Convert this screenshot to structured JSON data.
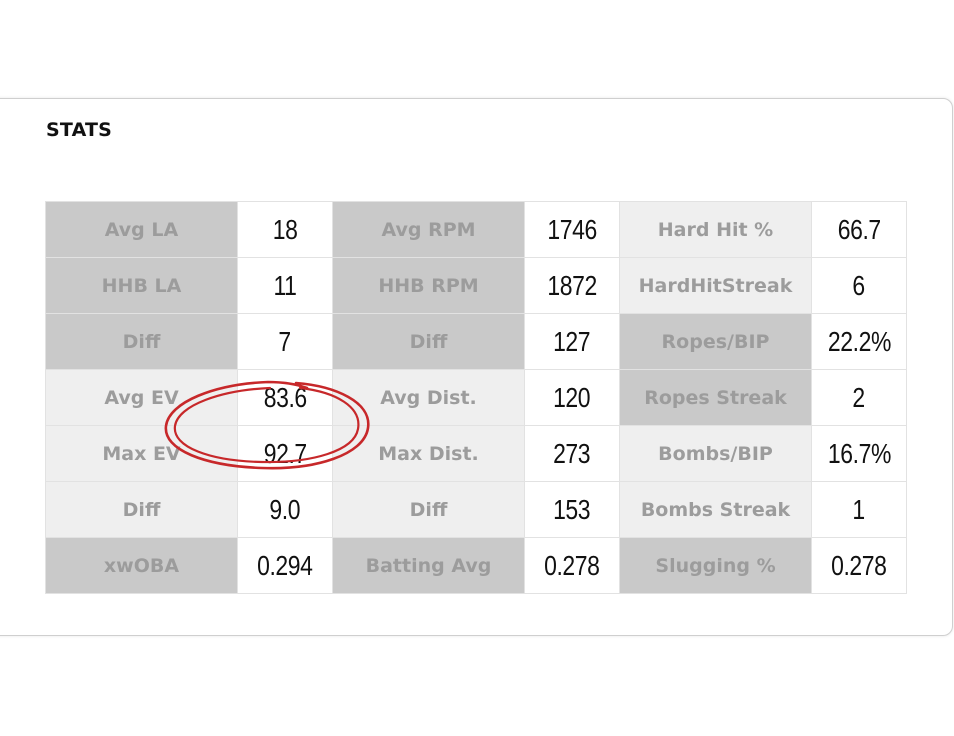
{
  "stats": {
    "title": "STATS",
    "rows": [
      [
        {
          "label": "Avg LA",
          "value": "18",
          "shade": "dark"
        },
        {
          "label": "Avg RPM",
          "value": "1746",
          "shade": "dark"
        },
        {
          "label": "Hard Hit %",
          "value": "66.7",
          "shade": "light"
        }
      ],
      [
        {
          "label": "HHB LA",
          "value": "11",
          "shade": "dark"
        },
        {
          "label": "HHB RPM",
          "value": "1872",
          "shade": "dark"
        },
        {
          "label": "HardHitStreak",
          "value": "6",
          "shade": "light"
        }
      ],
      [
        {
          "label": "Diff",
          "value": "7",
          "shade": "dark"
        },
        {
          "label": "Diff",
          "value": "127",
          "shade": "dark"
        },
        {
          "label": "Ropes/BIP",
          "value": "22.2%",
          "shade": "dark"
        }
      ],
      [
        {
          "label": "Avg EV",
          "value": "83.6",
          "shade": "light"
        },
        {
          "label": "Avg Dist.",
          "value": "120",
          "shade": "light"
        },
        {
          "label": "Ropes Streak",
          "value": "2",
          "shade": "dark"
        }
      ],
      [
        {
          "label": "Max EV",
          "value": "92.7",
          "shade": "light"
        },
        {
          "label": "Max Dist.",
          "value": "273",
          "shade": "light"
        },
        {
          "label": "Bombs/BIP",
          "value": "16.7%",
          "shade": "light"
        }
      ],
      [
        {
          "label": "Diff",
          "value": "9.0",
          "shade": "light"
        },
        {
          "label": "Diff",
          "value": "153",
          "shade": "light"
        },
        {
          "label": "Bombs Streak",
          "value": "1",
          "shade": "light"
        }
      ],
      [
        {
          "label": "xwOBA",
          "value": "0.294",
          "shade": "dark"
        },
        {
          "label": "Batting Avg",
          "value": "0.278",
          "shade": "dark"
        },
        {
          "label": "Slugging %",
          "value": "0.278",
          "shade": "dark"
        }
      ]
    ]
  },
  "colors": {
    "label_dark_bg": "#c9c9c9",
    "label_light_bg": "#efefef",
    "label_text": "#9c9c9c",
    "value_text": "#111111",
    "annotation_stroke": "#c7282a"
  },
  "annotation": {
    "shape": "hand-drawn ellipse",
    "encircles": [
      "83.6",
      "92.7"
    ]
  }
}
